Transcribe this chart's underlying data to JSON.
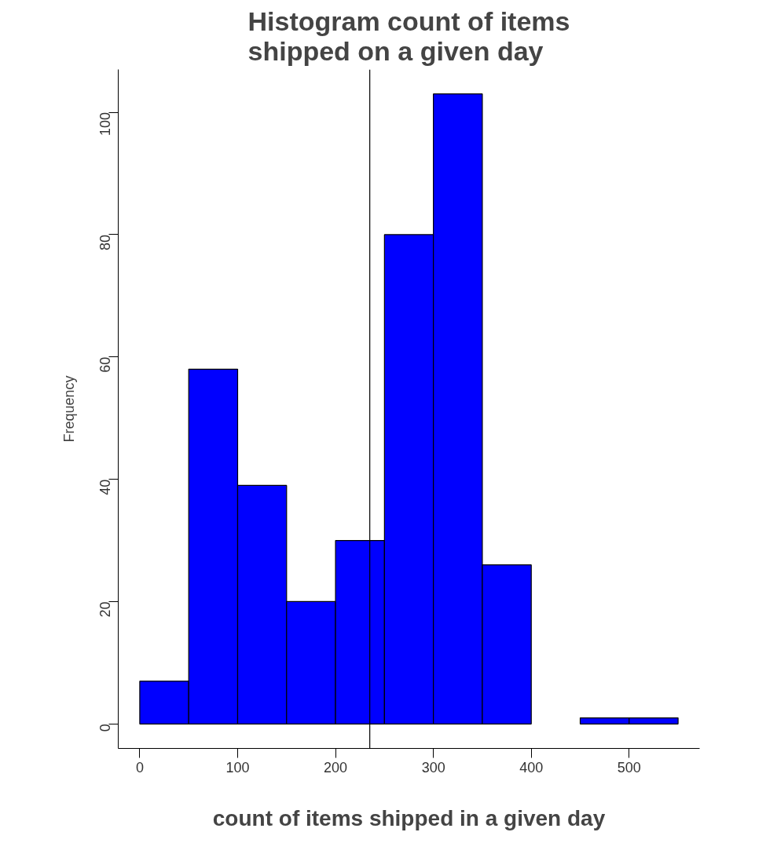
{
  "chart_data": {
    "type": "histogram",
    "title": "Histogram count of items\nshipped on a given day",
    "xlabel": "count of items shipped in a given day",
    "ylabel": "Frequency",
    "bins": [
      0,
      50,
      100,
      150,
      200,
      250,
      300,
      350,
      400,
      450,
      500,
      550
    ],
    "values": [
      7,
      58,
      39,
      20,
      30,
      80,
      103,
      26,
      0,
      1,
      1
    ],
    "color": "#0000ff",
    "xlim": [
      -22,
      572
    ],
    "ylim": [
      -4,
      107
    ],
    "xticks": [
      0,
      100,
      200,
      300,
      400,
      500
    ],
    "yticks": [
      0,
      20,
      40,
      60,
      80,
      100
    ],
    "ref_lines": [
      {
        "axis": "x",
        "value": 235,
        "color": "#000000"
      }
    ],
    "grid": false
  }
}
